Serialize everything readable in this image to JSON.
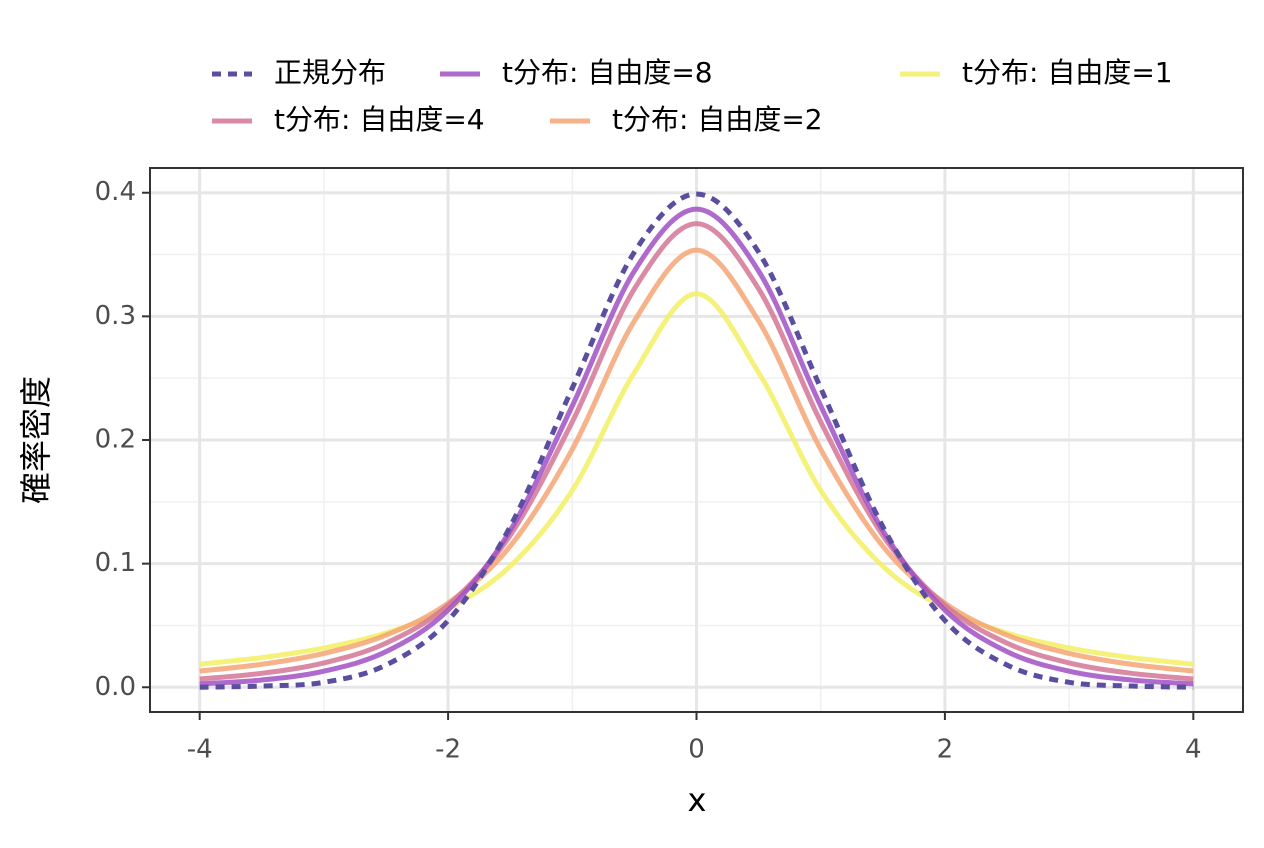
{
  "chart_data": {
    "type": "line",
    "x_label": "x",
    "y_label": "確率密度",
    "x": [
      -4,
      -3.5,
      -3,
      -2.5,
      -2,
      -1.5,
      -1,
      -0.5,
      0,
      0.5,
      1,
      1.5,
      2,
      2.5,
      3,
      3.5,
      4
    ],
    "series": [
      {
        "name": "正規分布",
        "color": "#5b4ea0",
        "dashed": true,
        "values": [
          0.0,
          0.001,
          0.004,
          0.018,
          0.054,
          0.13,
          0.242,
          0.352,
          0.399,
          0.352,
          0.242,
          0.13,
          0.054,
          0.018,
          0.004,
          0.001,
          0.0
        ]
      },
      {
        "name": "t分布: 自由度=8",
        "color": "#a150c4",
        "dashed": false,
        "values": [
          0.0028,
          0.0059,
          0.013,
          0.0288,
          0.0624,
          0.1268,
          0.2276,
          0.3367,
          0.3867,
          0.3367,
          0.2276,
          0.1268,
          0.0624,
          0.0288,
          0.013,
          0.0059,
          0.0028
        ]
      },
      {
        "name": "t分布: 自由度=4",
        "color": "#d47595",
        "dashed": false,
        "values": [
          0.0067,
          0.0113,
          0.0197,
          0.0357,
          0.0663,
          0.1229,
          0.2147,
          0.3223,
          0.375,
          0.3223,
          0.2147,
          0.1229,
          0.0663,
          0.0357,
          0.0197,
          0.0113,
          0.0067
        ]
      },
      {
        "name": "t分布: 自由度=2",
        "color": "#f4a474",
        "dashed": false,
        "values": [
          0.0131,
          0.0186,
          0.0274,
          0.0422,
          0.068,
          0.1141,
          0.1925,
          0.2963,
          0.3536,
          0.2963,
          0.1925,
          0.1141,
          0.068,
          0.0422,
          0.0274,
          0.0186,
          0.0131
        ]
      },
      {
        "name": "t分布: 自由度=1",
        "color": "#f3f065",
        "dashed": false,
        "values": [
          0.0187,
          0.024,
          0.0318,
          0.0439,
          0.0637,
          0.0979,
          0.1592,
          0.2546,
          0.3183,
          0.2546,
          0.1592,
          0.0979,
          0.0637,
          0.0439,
          0.0318,
          0.024,
          0.0187
        ]
      }
    ],
    "xlim": [
      -4.4,
      4.4
    ],
    "ylim": [
      -0.02,
      0.42
    ],
    "xticks": [
      -4,
      -2,
      0,
      2,
      4
    ],
    "yticks": [
      {
        "value": 0,
        "label": "0.0"
      },
      0.1,
      0.2,
      0.3,
      0.4
    ],
    "grid": true,
    "legend": "top"
  }
}
